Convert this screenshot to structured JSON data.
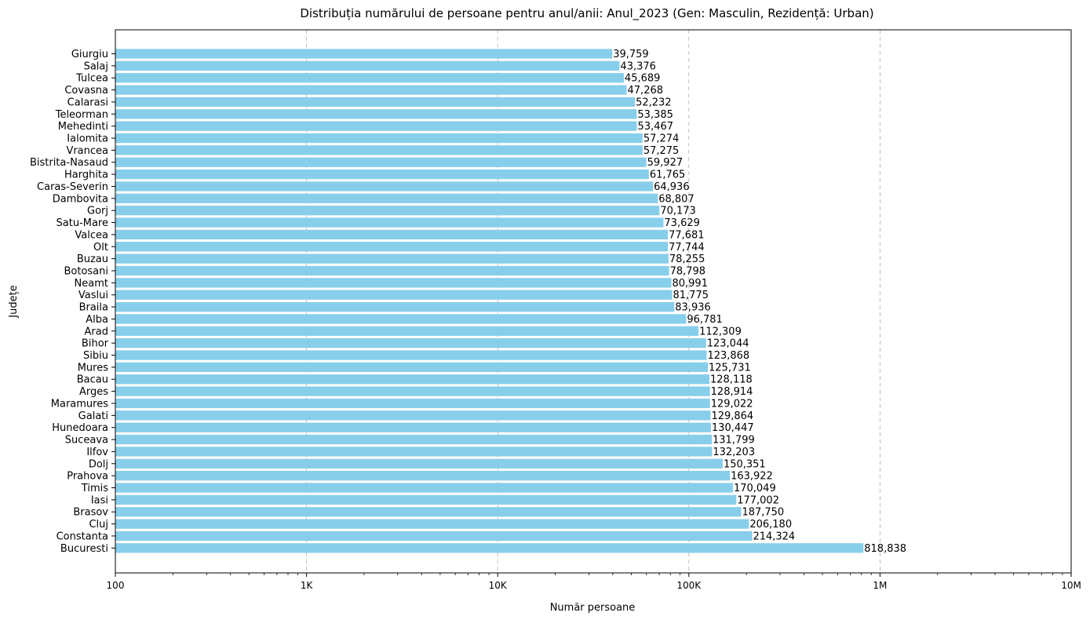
{
  "chart_data": {
    "type": "bar",
    "orientation": "horizontal",
    "title": "Distribuția numărului de persoane pentru anul/anii: Anul_2023 (Gen: Masculin, Rezidență: Urban)",
    "xlabel": "Număr persoane",
    "ylabel": "Județe",
    "xscale": "log",
    "xlim": [
      100,
      10000000
    ],
    "xticks": [
      {
        "value": 100,
        "label": "100"
      },
      {
        "value": 1000,
        "label": "1K"
      },
      {
        "value": 10000,
        "label": "10K"
      },
      {
        "value": 100000,
        "label": "100K"
      },
      {
        "value": 1000000,
        "label": "1M"
      },
      {
        "value": 10000000,
        "label": "10M"
      }
    ],
    "grid": "x-dashed",
    "bar_color": "#87CEEB",
    "categories": [
      "Giurgiu",
      "Salaj",
      "Tulcea",
      "Covasna",
      "Calarasi",
      "Teleorman",
      "Mehedinti",
      "Ialomita",
      "Vrancea",
      "Bistrita-Nasaud",
      "Harghita",
      "Caras-Severin",
      "Dambovita",
      "Gorj",
      "Satu-Mare",
      "Valcea",
      "Olt",
      "Buzau",
      "Botosani",
      "Neamt",
      "Vaslui",
      "Braila",
      "Alba",
      "Arad",
      "Bihor",
      "Sibiu",
      "Mures",
      "Bacau",
      "Arges",
      "Maramures",
      "Galati",
      "Hunedoara",
      "Suceava",
      "Ilfov",
      "Dolj",
      "Prahova",
      "Timis",
      "Iasi",
      "Brasov",
      "Cluj",
      "Constanta",
      "Bucuresti"
    ],
    "values": [
      39759,
      43376,
      45689,
      47268,
      52232,
      53385,
      53467,
      57274,
      57275,
      59927,
      61765,
      64936,
      68807,
      70173,
      73629,
      77681,
      77744,
      78255,
      78798,
      80991,
      81775,
      83936,
      96781,
      112309,
      123044,
      123868,
      125731,
      128118,
      128914,
      129022,
      129864,
      130447,
      131799,
      132203,
      150351,
      163922,
      170049,
      177002,
      187750,
      206180,
      214324,
      818838
    ],
    "value_labels": [
      "39,759",
      "43,376",
      "45,689",
      "47,268",
      "52,232",
      "53,385",
      "53,467",
      "57,274",
      "57,275",
      "59,927",
      "61,765",
      "64,936",
      "68,807",
      "70,173",
      "73,629",
      "77,681",
      "77,744",
      "78,255",
      "78,798",
      "80,991",
      "81,775",
      "83,936",
      "96,781",
      "112,309",
      "123,044",
      "123,868",
      "125,731",
      "128,118",
      "128,914",
      "129,022",
      "129,864",
      "130,447",
      "131,799",
      "132,203",
      "150,351",
      "163,922",
      "170,049",
      "177,002",
      "187,750",
      "206,180",
      "214,324",
      "818,838"
    ]
  }
}
